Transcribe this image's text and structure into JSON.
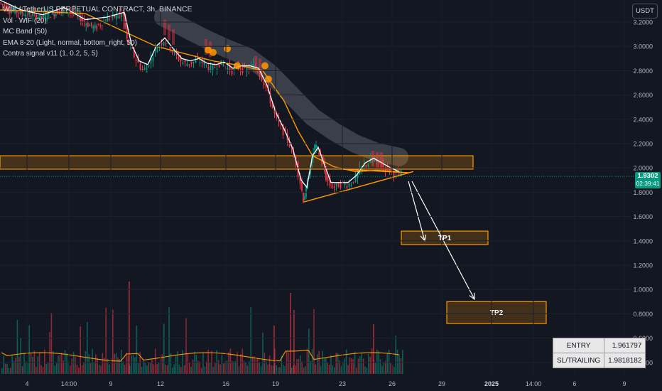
{
  "legend": {
    "title": "WIF / TetherUS PERPETUAL CONTRACT, 3h, BINANCE",
    "line2": "Vol · WIF  (20)",
    "line3": "MC Band (50)",
    "line4": "EMA 8-20 (Light, normal, bottom_right, 50)",
    "line5": "Contra signal v11 (1, 0.2, 5, 5)"
  },
  "currency_button": "USDT",
  "last_price": {
    "value": "1.9302",
    "countdown": "02:39:41"
  },
  "zones": {
    "tp1": "TP1",
    "tp2": "TP2"
  },
  "info_table": {
    "rows": [
      {
        "key": "ENTRY",
        "value": "1.961797"
      },
      {
        "key": "SL/TRAILING",
        "value": "1.9818182"
      }
    ]
  },
  "colors": {
    "background": "#131722",
    "up": "#089981",
    "down": "#f23645",
    "orange": "#ff9800",
    "band": "#5d606b"
  },
  "chart_data": {
    "type": "line",
    "title": "WIF / TetherUS PERPETUAL CONTRACT, 3h, BINANCE",
    "y_axis_ticks": [
      3.2,
      3.0,
      2.8,
      2.6,
      2.4,
      2.2,
      2.0,
      1.8,
      1.6,
      1.4,
      1.2,
      1.0,
      0.8,
      0.6,
      0.4
    ],
    "ylim": [
      0.36,
      3.27
    ],
    "x_axis_ticks": [
      "4",
      "14:00",
      "9",
      "12",
      "16",
      "19",
      "23",
      "26",
      "29",
      "2025",
      "14:00",
      "6",
      "9"
    ],
    "price_path": [
      {
        "x": 0,
        "y": 3.36
      },
      {
        "x": 15,
        "y": 3.3
      },
      {
        "x": 30,
        "y": 3.28
      },
      {
        "x": 45,
        "y": 3.26
      },
      {
        "x": 60,
        "y": 3.24
      },
      {
        "x": 75,
        "y": 3.27
      },
      {
        "x": 90,
        "y": 3.3
      },
      {
        "x": 105,
        "y": 3.28
      },
      {
        "x": 120,
        "y": 3.2
      },
      {
        "x": 135,
        "y": 3.15
      },
      {
        "x": 150,
        "y": 3.22
      },
      {
        "x": 165,
        "y": 3.25
      },
      {
        "x": 175,
        "y": 3.26
      },
      {
        "x": 180,
        "y": 3.05
      },
      {
        "x": 185,
        "y": 3.0
      },
      {
        "x": 190,
        "y": 2.92
      },
      {
        "x": 196,
        "y": 2.86
      },
      {
        "x": 202,
        "y": 2.8
      },
      {
        "x": 208,
        "y": 2.83
      },
      {
        "x": 214,
        "y": 2.9
      },
      {
        "x": 220,
        "y": 2.98
      },
      {
        "x": 226,
        "y": 3.02
      },
      {
        "x": 232,
        "y": 3.05
      },
      {
        "x": 238,
        "y": 3.02
      },
      {
        "x": 244,
        "y": 2.96
      },
      {
        "x": 250,
        "y": 2.92
      },
      {
        "x": 256,
        "y": 2.88
      },
      {
        "x": 262,
        "y": 2.86
      },
      {
        "x": 268,
        "y": 2.86
      },
      {
        "x": 274,
        "y": 2.87
      },
      {
        "x": 280,
        "y": 2.88
      },
      {
        "x": 286,
        "y": 2.87
      },
      {
        "x": 292,
        "y": 2.84
      },
      {
        "x": 298,
        "y": 2.81
      },
      {
        "x": 304,
        "y": 2.83
      },
      {
        "x": 310,
        "y": 2.86
      },
      {
        "x": 316,
        "y": 2.85
      },
      {
        "x": 322,
        "y": 2.82
      },
      {
        "x": 328,
        "y": 2.8
      },
      {
        "x": 334,
        "y": 2.83
      },
      {
        "x": 340,
        "y": 2.82
      },
      {
        "x": 346,
        "y": 2.8
      },
      {
        "x": 352,
        "y": 2.82
      },
      {
        "x": 358,
        "y": 2.84
      },
      {
        "x": 364,
        "y": 2.8
      },
      {
        "x": 370,
        "y": 2.74
      },
      {
        "x": 376,
        "y": 2.66
      },
      {
        "x": 382,
        "y": 2.55
      },
      {
        "x": 388,
        "y": 2.44
      },
      {
        "x": 394,
        "y": 2.36
      },
      {
        "x": 400,
        "y": 2.3
      },
      {
        "x": 406,
        "y": 2.24
      },
      {
        "x": 412,
        "y": 2.14
      },
      {
        "x": 418,
        "y": 2.04
      },
      {
        "x": 424,
        "y": 1.88
      },
      {
        "x": 428,
        "y": 1.74
      },
      {
        "x": 432,
        "y": 1.82
      },
      {
        "x": 436,
        "y": 1.95
      },
      {
        "x": 440,
        "y": 2.08
      },
      {
        "x": 444,
        "y": 2.18
      },
      {
        "x": 448,
        "y": 2.15
      },
      {
        "x": 452,
        "y": 2.1
      },
      {
        "x": 456,
        "y": 2.02
      },
      {
        "x": 460,
        "y": 1.92
      },
      {
        "x": 466,
        "y": 1.86
      },
      {
        "x": 472,
        "y": 1.84
      },
      {
        "x": 478,
        "y": 1.86
      },
      {
        "x": 484,
        "y": 1.87
      },
      {
        "x": 490,
        "y": 1.86
      },
      {
        "x": 496,
        "y": 1.88
      },
      {
        "x": 502,
        "y": 1.92
      },
      {
        "x": 508,
        "y": 1.98
      },
      {
        "x": 514,
        "y": 2.02
      },
      {
        "x": 520,
        "y": 2.04
      },
      {
        "x": 526,
        "y": 2.06
      },
      {
        "x": 532,
        "y": 2.04
      },
      {
        "x": 538,
        "y": 2.02
      },
      {
        "x": 544,
        "y": 2.0
      },
      {
        "x": 550,
        "y": 1.98
      },
      {
        "x": 556,
        "y": 1.96
      },
      {
        "x": 562,
        "y": 1.95
      },
      {
        "x": 566,
        "y": 1.93
      }
    ],
    "series": [
      {
        "name": "MC Band (50)",
        "values": [
          {
            "x": 230,
            "y": 3.24
          },
          {
            "x": 260,
            "y": 3.15
          },
          {
            "x": 290,
            "y": 3.06
          },
          {
            "x": 320,
            "y": 2.98
          },
          {
            "x": 350,
            "y": 2.91
          },
          {
            "x": 380,
            "y": 2.78
          },
          {
            "x": 410,
            "y": 2.6
          },
          {
            "x": 440,
            "y": 2.42
          },
          {
            "x": 470,
            "y": 2.3
          },
          {
            "x": 500,
            "y": 2.2
          },
          {
            "x": 530,
            "y": 2.13
          },
          {
            "x": 562,
            "y": 2.09
          }
        ]
      },
      {
        "name": "EMA 8-20 (Light, normal, bottom_right, 50)",
        "values": [
          {
            "x": 0,
            "y": 3.3
          },
          {
            "x": 120,
            "y": 3.27
          },
          {
            "x": 190,
            "y": 3.08
          },
          {
            "x": 220,
            "y": 3.0
          },
          {
            "x": 260,
            "y": 2.94
          },
          {
            "x": 300,
            "y": 2.88
          },
          {
            "x": 340,
            "y": 2.84
          },
          {
            "x": 370,
            "y": 2.8
          },
          {
            "x": 400,
            "y": 2.55
          },
          {
            "x": 420,
            "y": 2.3
          },
          {
            "x": 440,
            "y": 2.1
          },
          {
            "x": 470,
            "y": 2.01
          },
          {
            "x": 500,
            "y": 1.97
          },
          {
            "x": 530,
            "y": 1.98
          },
          {
            "x": 562,
            "y": 1.97
          }
        ]
      }
    ],
    "levels": {
      "resistance_zone": [
        1.99,
        2.1
      ],
      "current_price": 1.9302,
      "tp1_zone": [
        1.37,
        1.48
      ],
      "tp2_zone": [
        0.72,
        0.9
      ]
    }
  }
}
